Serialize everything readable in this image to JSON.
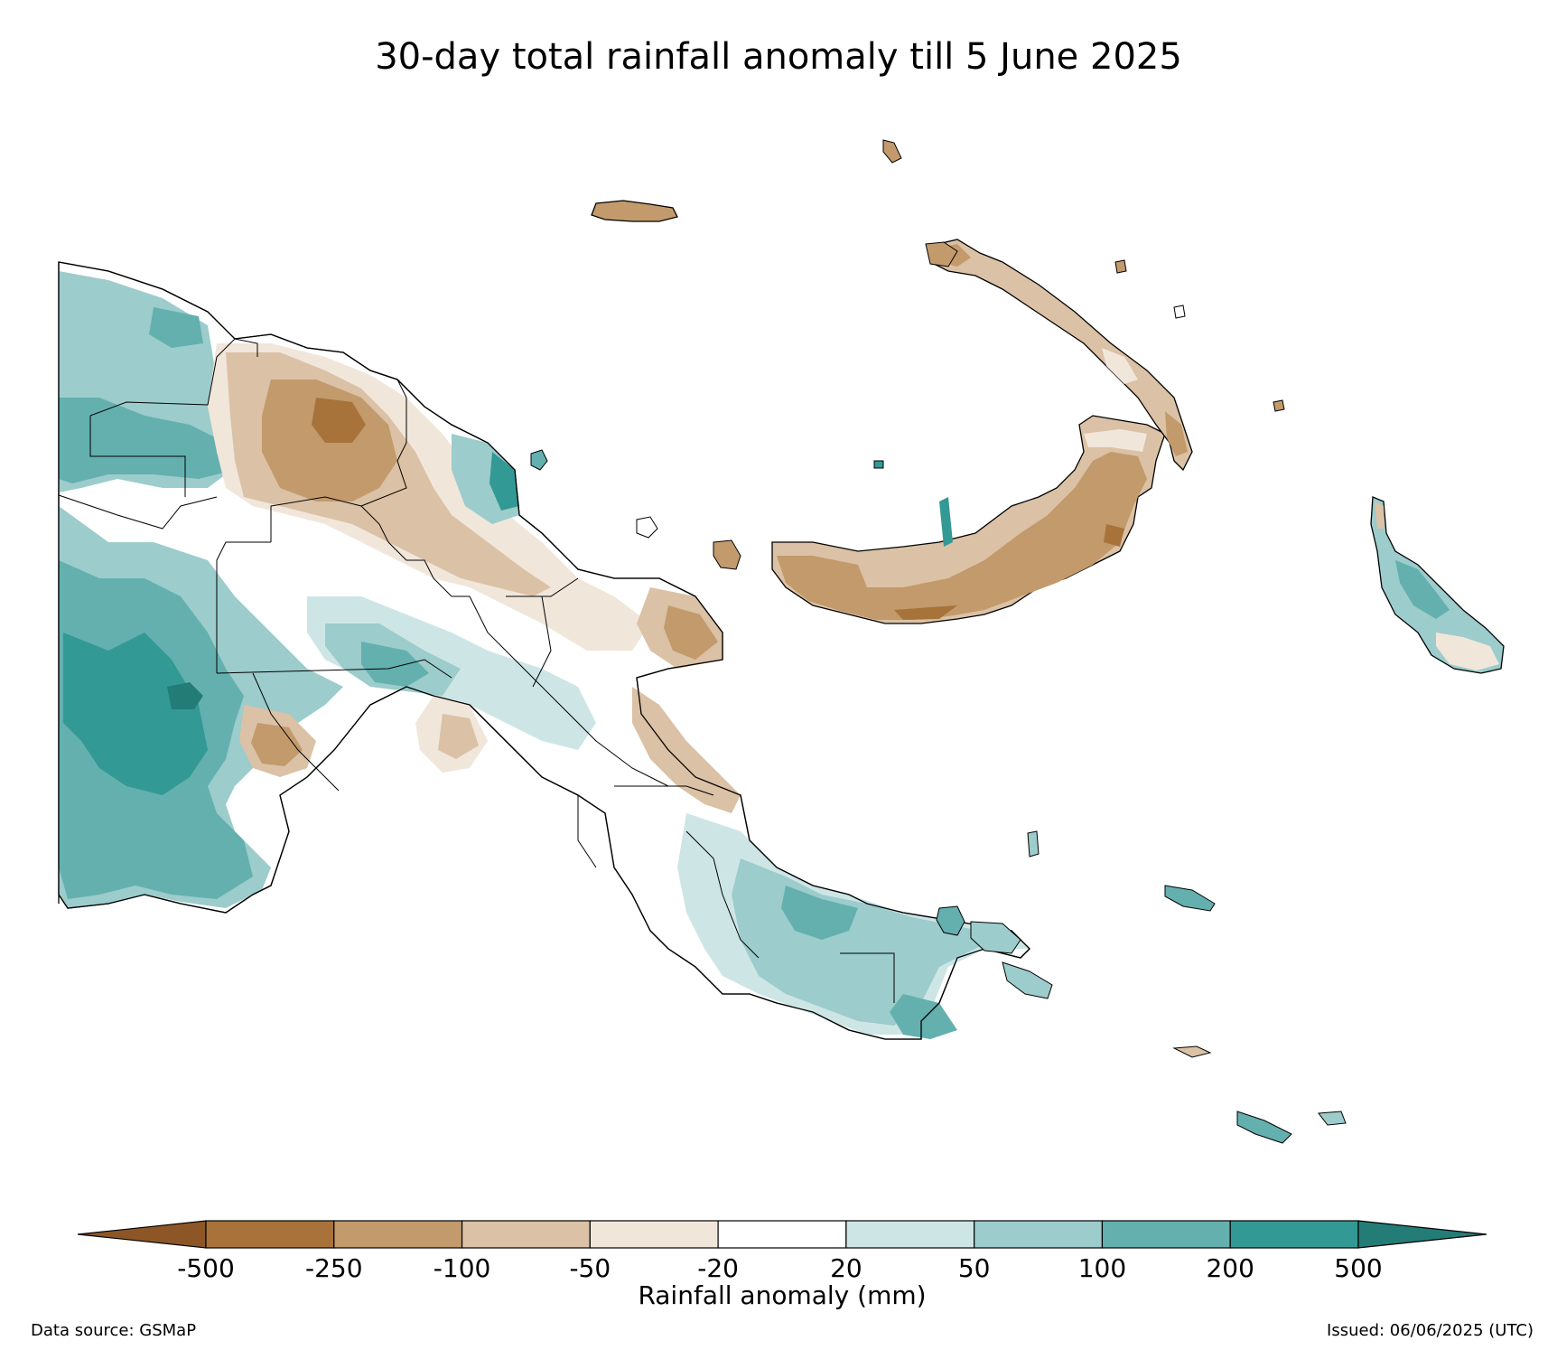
{
  "figure": {
    "title": "30-day total rainfall anomaly till 5 June 2025",
    "data_source": "Data source: GSMaP",
    "issued": "Issued: 06/06/2025 (UTC)"
  },
  "colorbar": {
    "label": "Rainfall anomaly (mm)",
    "ticks": [
      "-500",
      "-250",
      "-100",
      "-50",
      "-20",
      "20",
      "50",
      "100",
      "200",
      "500"
    ],
    "bins": [
      {
        "range": "< -500",
        "color": "#8c5626"
      },
      {
        "range": "-500 to -250",
        "color": "#a8733a"
      },
      {
        "range": "-250 to -100",
        "color": "#c29a6b"
      },
      {
        "range": "-100 to -50",
        "color": "#dbc1a5"
      },
      {
        "range": "-50 to -20",
        "color": "#f1e6da"
      },
      {
        "range": "-20 to 20",
        "color": "#ffffff"
      },
      {
        "range": "20 to 50",
        "color": "#cde6e5"
      },
      {
        "range": "50 to 100",
        "color": "#9ccccb"
      },
      {
        "range": "100 to 200",
        "color": "#63b0af"
      },
      {
        "range": "200 to 500",
        "color": "#339994"
      },
      {
        "range": "> 500",
        "color": "#247c77"
      }
    ]
  },
  "chart_data": {
    "type": "heatmap",
    "region": "Papua New Guinea",
    "variable": "30-day total rainfall anomaly",
    "units": "mm",
    "levels": [
      -500,
      -250,
      -100,
      -50,
      -20,
      20,
      50,
      100,
      200,
      500
    ],
    "extend": "both"
  }
}
